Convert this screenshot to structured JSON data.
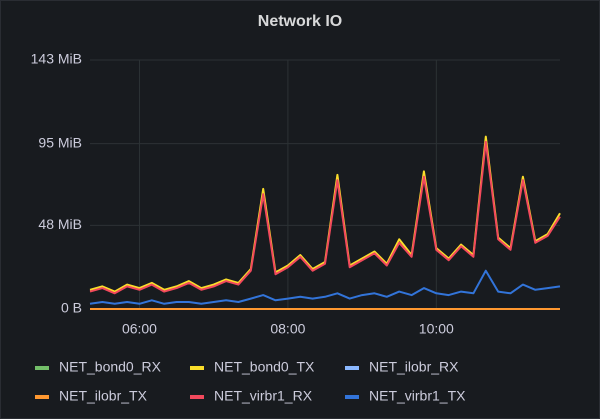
{
  "chart_data": {
    "type": "line",
    "title": "Network IO",
    "x": [
      "05:20",
      "05:30",
      "05:40",
      "05:50",
      "06:00",
      "06:10",
      "06:20",
      "06:30",
      "06:40",
      "06:50",
      "07:00",
      "07:10",
      "07:20",
      "07:30",
      "07:40",
      "07:50",
      "08:00",
      "08:10",
      "08:20",
      "08:30",
      "08:40",
      "08:50",
      "09:00",
      "09:10",
      "09:20",
      "09:30",
      "09:40",
      "09:50",
      "10:00",
      "10:10",
      "10:20",
      "10:30",
      "10:40",
      "10:50",
      "11:00",
      "11:10",
      "11:20",
      "11:30",
      "11:40"
    ],
    "xlim": [
      "05:20",
      "11:40"
    ],
    "xticks": [
      "06:00",
      "08:00",
      "10:00"
    ],
    "ylim": [
      0,
      143
    ],
    "yticks": [
      {
        "value": 0,
        "label": "0 B"
      },
      {
        "value": 48,
        "label": "48 MiB"
      },
      {
        "value": 95,
        "label": "95 MiB"
      },
      {
        "value": 143,
        "label": "143 MiB"
      }
    ],
    "grid": true,
    "legend": "bottom",
    "series": [
      {
        "name": "NET_bond0_RX",
        "color": "#73bf69",
        "values": [
          0,
          0,
          0,
          0,
          0,
          0,
          0,
          0,
          0,
          0,
          0,
          0,
          0,
          0,
          0,
          0,
          0,
          0,
          0,
          0,
          0,
          0,
          0,
          0,
          0,
          0,
          0,
          0,
          0,
          0,
          0,
          0,
          0,
          0,
          0,
          0,
          0,
          0,
          0
        ]
      },
      {
        "name": "NET_bond0_TX",
        "color": "#fade2a",
        "values": [
          11,
          13,
          10,
          14,
          12,
          15,
          11,
          13,
          16,
          12,
          14,
          17,
          15,
          23,
          69,
          21,
          25,
          31,
          23,
          27,
          77,
          25,
          29,
          33,
          26,
          40,
          31,
          79,
          35,
          29,
          37,
          31,
          99,
          41,
          35,
          76,
          39,
          43,
          55
        ]
      },
      {
        "name": "NET_ilobr_RX",
        "color": "#8ab8ff",
        "values": [
          0,
          0,
          0,
          0,
          0,
          0,
          0,
          0,
          0,
          0,
          0,
          0,
          0,
          0,
          0,
          0,
          0,
          0,
          0,
          0,
          0,
          0,
          0,
          0,
          0,
          0,
          0,
          0,
          0,
          0,
          0,
          0,
          0,
          0,
          0,
          0,
          0,
          0,
          0
        ]
      },
      {
        "name": "NET_ilobr_TX",
        "color": "#ff9830",
        "values": [
          0,
          0,
          0,
          0,
          0,
          0,
          0,
          0,
          0,
          0,
          0,
          0,
          0,
          0,
          0,
          0,
          0,
          0,
          0,
          0,
          0,
          0,
          0,
          0,
          0,
          0,
          0,
          0,
          0,
          0,
          0,
          0,
          0,
          0,
          0,
          0,
          0,
          0,
          0
        ]
      },
      {
        "name": "NET_virbr1_RX",
        "color": "#f2495c",
        "values": [
          10,
          12,
          9,
          13,
          11,
          14,
          10,
          12,
          15,
          11,
          13,
          16,
          14,
          22,
          66,
          20,
          24,
          30,
          22,
          26,
          74,
          24,
          28,
          32,
          25,
          38,
          30,
          76,
          34,
          28,
          36,
          30,
          96,
          40,
          34,
          74,
          38,
          42,
          53
        ]
      },
      {
        "name": "NET_virbr1_TX",
        "color": "#3274d9",
        "values": [
          3,
          4,
          3,
          4,
          3,
          5,
          3,
          4,
          4,
          3,
          4,
          5,
          4,
          6,
          8,
          5,
          6,
          7,
          6,
          7,
          9,
          6,
          8,
          9,
          7,
          10,
          8,
          12,
          9,
          8,
          10,
          9,
          22,
          10,
          9,
          14,
          11,
          12,
          13
        ]
      }
    ]
  }
}
